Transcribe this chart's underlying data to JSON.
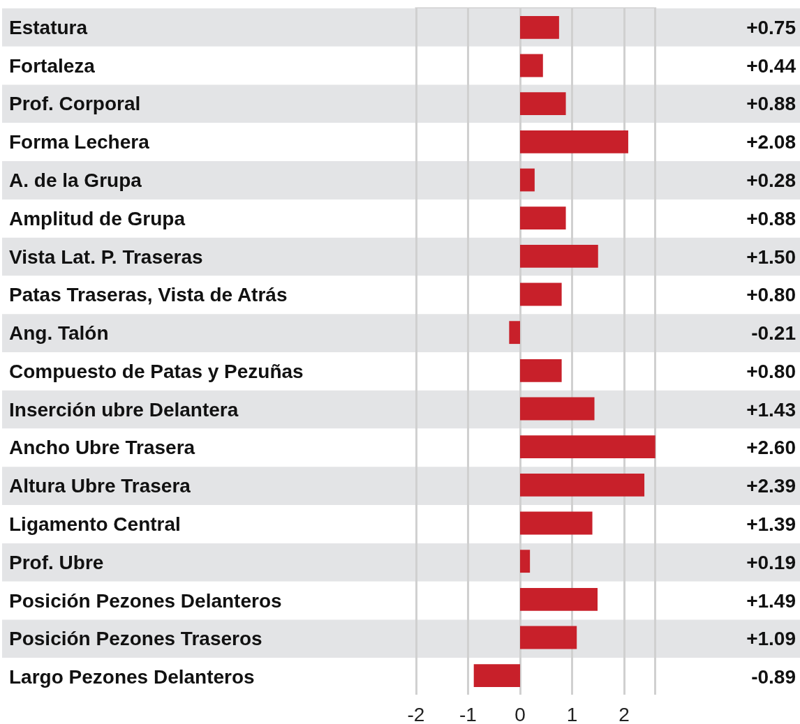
{
  "chart_data": {
    "type": "bar",
    "orientation": "horizontal",
    "categories": [
      "Estatura",
      "Fortaleza",
      "Prof. Corporal",
      "Forma Lechera",
      "A. de la Grupa",
      "Amplitud de Grupa",
      "Vista Lat. P. Traseras",
      "Patas Traseras, Vista de Atrás",
      "Ang. Talón",
      "Compuesto de Patas y Pezuñas",
      "Inserción ubre Delantera",
      "Ancho Ubre Trasera",
      "Altura Ubre Trasera",
      "Ligamento Central",
      "Prof. Ubre",
      "Posición Pezones Delanteros",
      "Posición Pezones Traseros",
      "Largo Pezones Delanteros"
    ],
    "values": [
      0.75,
      0.44,
      0.88,
      2.08,
      0.28,
      0.88,
      1.5,
      0.8,
      -0.21,
      0.8,
      1.43,
      2.6,
      2.39,
      1.39,
      0.19,
      1.49,
      1.09,
      -0.89
    ],
    "value_labels": [
      "+0.75",
      "+0.44",
      "+0.88",
      "+2.08",
      "+0.28",
      "+0.88",
      "+1.50",
      "+0.80",
      "-0.21",
      "+0.80",
      "+1.43",
      "+2.60",
      "+2.39",
      "+1.39",
      "+0.19",
      "+1.49",
      "+1.09",
      "-0.89"
    ],
    "color": "#c8202a",
    "xlim": [
      -2,
      2.6
    ],
    "xticks": [
      -2,
      -1,
      0,
      1,
      2
    ],
    "grid": "x"
  }
}
